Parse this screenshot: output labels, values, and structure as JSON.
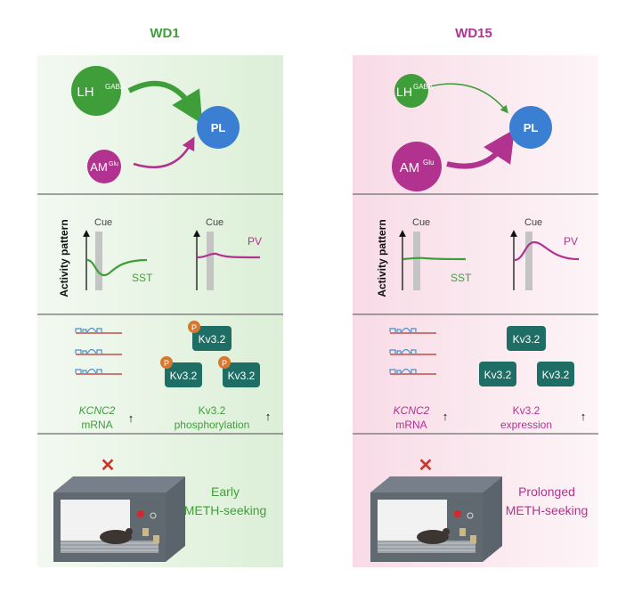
{
  "colors": {
    "green": "#3f9e3a",
    "magenta": "#b2328f",
    "blue": "#3b7fd3",
    "teal": "#1f6e66",
    "phospho": "#d9782d",
    "cross": "#c9392f"
  },
  "panels": [
    {
      "title": "WD1",
      "circuit": {
        "lh_main": "LH",
        "lh_sup": "GABA",
        "am_main": "AM",
        "am_sup": "Glu",
        "pl": "PL"
      },
      "activity": {
        "ylabel": "Activity pattern",
        "cue1": "Cue",
        "cue2": "Cue",
        "trace1": "SST",
        "trace2": "PV"
      },
      "molecular": {
        "kv_labels": [
          "Kv3.2",
          "Kv3.2",
          "Kv3.2"
        ],
        "phospho": "P",
        "gene": "KCNC2",
        "gene_sub": "mRNA",
        "protein": "Kv3.2",
        "protein_sub": "phosphorylation",
        "arrow": "↑"
      },
      "behavior": {
        "line1": "Early",
        "line2": "METH-seeking",
        "cross": "✕"
      }
    },
    {
      "title": "WD15",
      "circuit": {
        "lh_main": "LH",
        "lh_sup": "GABA",
        "am_main": "AM",
        "am_sup": "Glu",
        "pl": "PL"
      },
      "activity": {
        "ylabel": "Activity pattern",
        "cue1": "Cue",
        "cue2": "Cue",
        "trace1": "SST",
        "trace2": "PV"
      },
      "molecular": {
        "kv_labels": [
          "Kv3.2",
          "Kv3.2",
          "Kv3.2"
        ],
        "gene": "KCNC2",
        "gene_sub": "mRNA",
        "protein": "Kv3.2",
        "protein_sub": "expression",
        "arrow": "↑"
      },
      "behavior": {
        "line1": "Prolonged",
        "line2": "METH-seeking",
        "cross": "✕"
      }
    }
  ]
}
